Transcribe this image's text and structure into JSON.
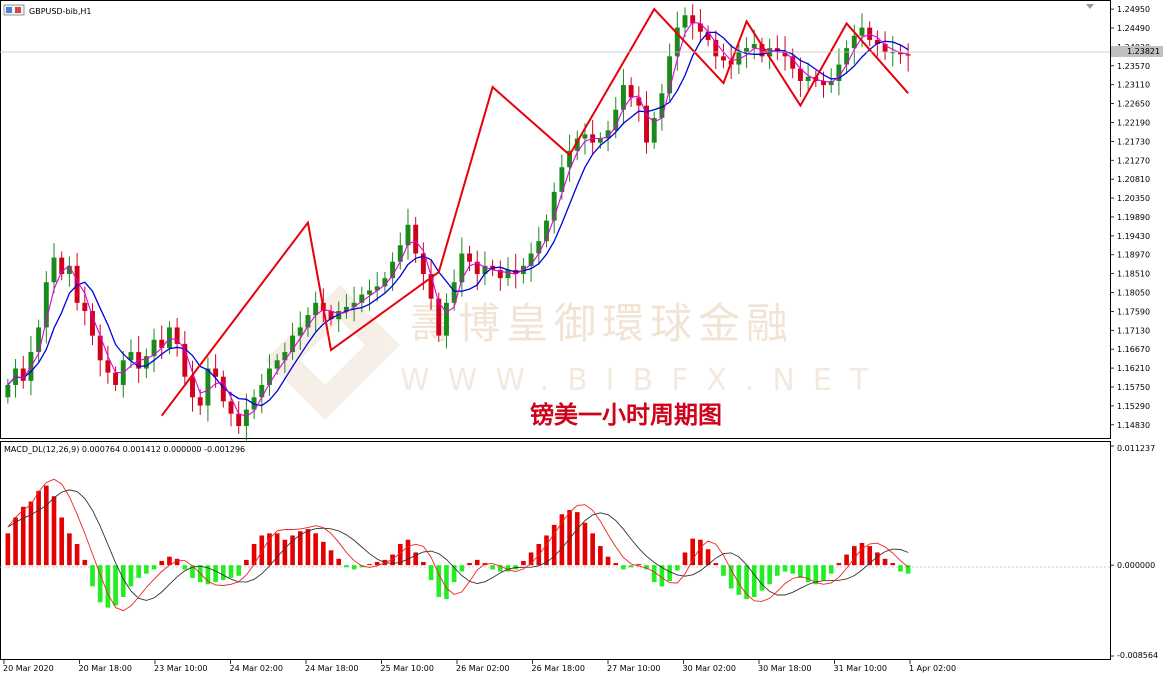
{
  "window": {
    "symbol_label": "GBPUSD-bib,H1",
    "icon": "chart-window-icon"
  },
  "watermark": {
    "chinese": "壽博皇御環球金融",
    "website": "WWW.BIBFX.NET",
    "logo": "bibfx-logo"
  },
  "annotation": {
    "title": "镑美一小时周期图"
  },
  "colors": {
    "bull_candle": "#1a8a1a",
    "bear_candle": "#d0021b",
    "ma_fast": "#e000e0",
    "ma_slow": "#0000dd",
    "zigzag": "#e8000b",
    "macd_pos": "#e30000",
    "macd_neg": "#22ee22",
    "macd_line": "#333333",
    "signal_line": "#ee2222",
    "current_price_bg": "#c0c0c0"
  },
  "chart_data": [
    {
      "type": "candlestick",
      "symbol": "GBPUSD-bib",
      "timeframe": "H1",
      "y_ticks": [
        "1.24950",
        "1.24490",
        "1.24030",
        "1.23570",
        "1.23110",
        "1.22650",
        "1.22190",
        "1.21730",
        "1.21270",
        "1.20810",
        "1.20350",
        "1.19890",
        "1.19430",
        "1.18970",
        "1.18510",
        "1.18050",
        "1.17590",
        "1.17130",
        "1.16670",
        "1.16210",
        "1.15750",
        "1.15290",
        "1.14830"
      ],
      "ylim": [
        1.1463,
        1.2505
      ],
      "current_price": "1.23821",
      "x_ticks": [
        "20 Mar 2020",
        "20 Mar 18:00",
        "23 Mar 10:00",
        "24 Mar 02:00",
        "24 Mar 18:00",
        "25 Mar 10:00",
        "26 Mar 02:00",
        "26 Mar 18:00",
        "27 Mar 10:00",
        "30 Mar 02:00",
        "30 Mar 18:00",
        "31 Mar 10:00",
        "1 Apr 02:00"
      ],
      "close": [
        1.158,
        1.162,
        1.159,
        1.166,
        1.172,
        1.183,
        1.189,
        1.185,
        1.187,
        1.178,
        1.176,
        1.17,
        1.164,
        1.161,
        1.158,
        1.164,
        1.166,
        1.162,
        1.165,
        1.169,
        1.167,
        1.172,
        1.168,
        1.16,
        1.155,
        1.153,
        1.162,
        1.16,
        1.154,
        1.151,
        1.148,
        1.152,
        1.155,
        1.158,
        1.162,
        1.164,
        1.166,
        1.17,
        1.172,
        1.175,
        1.178,
        1.176,
        1.174,
        1.176,
        1.177,
        1.178,
        1.18,
        1.181,
        1.182,
        1.184,
        1.188,
        1.192,
        1.197,
        1.19,
        1.185,
        1.179,
        1.17,
        1.178,
        1.183,
        1.19,
        1.188,
        1.185,
        1.187,
        1.186,
        1.184,
        1.186,
        1.185,
        1.187,
        1.19,
        1.193,
        1.198,
        1.205,
        1.211,
        1.215,
        1.218,
        1.219,
        1.217,
        1.218,
        1.22,
        1.225,
        1.231,
        1.228,
        1.226,
        1.217,
        1.223,
        1.229,
        1.238,
        1.245,
        1.248,
        1.246,
        1.244,
        1.242,
        1.238,
        1.237,
        1.236,
        1.239,
        1.24,
        1.241,
        1.238,
        1.24,
        1.239,
        1.238,
        1.235,
        1.232,
        1.233,
        1.232,
        1.231,
        1.232,
        1.236,
        1.24,
        1.243,
        1.245,
        1.242,
        1.241,
        1.239,
        1.239,
        1.2385,
        1.2382
      ],
      "overlays": [
        {
          "name": "MA fast",
          "color": "#e000e0"
        },
        {
          "name": "MA slow",
          "color": "#0000dd"
        },
        {
          "name": "ZigZag",
          "color": "#e8000b",
          "points": [
            1.1505,
            1.1975,
            1.1665,
            1.1855,
            1.2305,
            1.214,
            1.2495,
            1.2315,
            1.2465,
            1.226,
            1.246,
            1.229
          ]
        }
      ]
    },
    {
      "type": "bar",
      "title": "MACD_DL(12,26,9) 0.000764 0.001412 0.000000 -0.001296",
      "y_ticks": [
        "0.011237",
        "0.000000",
        "-0.008564"
      ],
      "ylim": [
        -0.008564,
        0.011237
      ],
      "histogram": [
        0.003,
        0.0045,
        0.0055,
        0.006,
        0.007,
        0.0075,
        0.0065,
        0.0045,
        0.003,
        0.002,
        0.0005,
        -0.002,
        -0.0035,
        -0.004,
        -0.0038,
        -0.003,
        -0.002,
        -0.0012,
        -0.0008,
        -0.0004,
        0.0004,
        0.0008,
        0.0006,
        -0.0004,
        -0.0012,
        -0.0016,
        -0.0018,
        -0.0016,
        -0.0014,
        -0.0012,
        -0.001,
        0.0005,
        0.002,
        0.0028,
        0.003,
        0.003,
        0.0024,
        0.0028,
        0.0032,
        0.0034,
        0.003,
        0.0022,
        0.0014,
        0.0006,
        -0.0002,
        -0.0004,
        -0.0002,
        0.0001,
        0.0003,
        0.0005,
        0.001,
        0.002,
        0.0024,
        0.0012,
        0.0003,
        -0.0014,
        -0.003,
        -0.0032,
        -0.0016,
        -0.0006,
        0.0002,
        0.0005,
        0.0002,
        -0.0004,
        -0.0006,
        -0.0006,
        -0.0004,
        0.0004,
        0.0012,
        0.002,
        0.0028,
        0.0038,
        0.0048,
        0.0052,
        0.005,
        0.004,
        0.003,
        0.0018,
        0.0008,
        0.0002,
        -0.0004,
        -0.0002,
        0.0001,
        -0.0004,
        -0.0016,
        -0.002,
        -0.0015,
        -0.0005,
        0.0012,
        0.0025,
        0.0024,
        0.0015,
        0.0002,
        -0.001,
        -0.0022,
        -0.0028,
        -0.0032,
        -0.003,
        -0.0024,
        -0.0018,
        -0.001,
        -0.0006,
        -0.0008,
        -0.0012,
        -0.0016,
        -0.0018,
        -0.0014,
        -0.0008,
        0.0002,
        0.001,
        0.0018,
        0.0021,
        0.0018,
        0.0012,
        0.0006,
        0.0002,
        -0.0006,
        -0.0008
      ]
    }
  ]
}
